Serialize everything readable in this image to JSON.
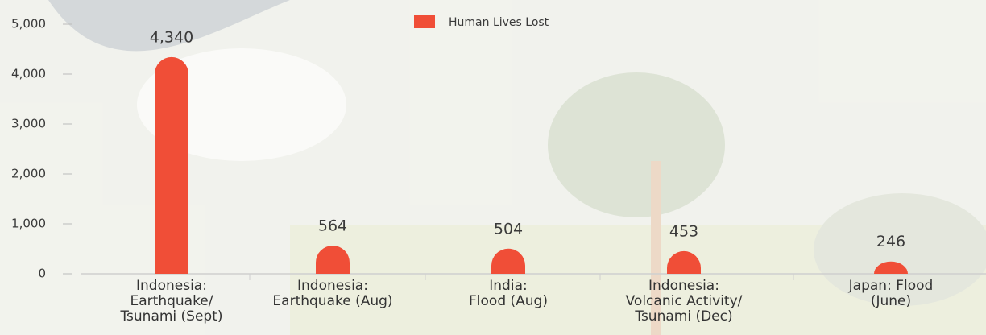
{
  "chart_data": {
    "type": "bar",
    "categories": [
      "Indonesia:\nEarthquake/\nTsunami (Sept)",
      "Indonesia:\nEarthquake (Aug)",
      "India:\nFlood (Aug)",
      "Indonesia:\nVolcanic Activity/\nTsunami (Dec)",
      "Japan: Flood\n(June)"
    ],
    "series": [
      {
        "name": "Human Lives Lost",
        "color": "#f04e37",
        "values": [
          4340,
          564,
          504,
          453,
          246
        ],
        "value_labels": [
          "4,340",
          "564",
          "504",
          "453",
          "246"
        ]
      }
    ],
    "ylim": [
      0,
      5000
    ],
    "yticks": [
      0,
      {
        "value": 1000,
        "label": "1,000"
      },
      {
        "value": 2000,
        "label": "2,000"
      },
      {
        "value": 3000,
        "label": "3,000"
      },
      {
        "value": 4000,
        "label": "4,000"
      },
      {
        "value": 5000,
        "label": "5,000"
      }
    ]
  }
}
